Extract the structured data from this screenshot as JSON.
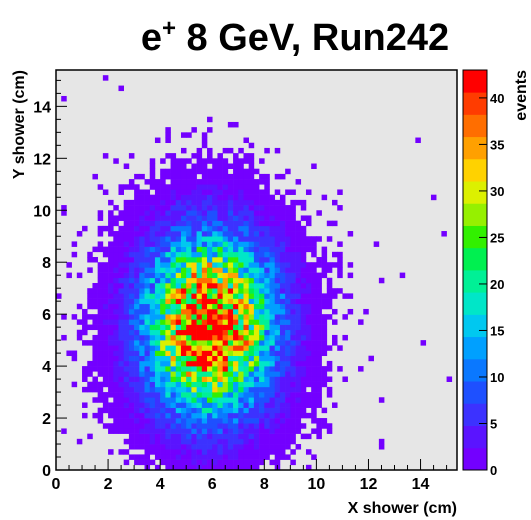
{
  "chart_data": {
    "type": "heatmap",
    "title": {
      "particle": "e",
      "superscript": "+",
      "rest": " 8 GeV, Run242"
    },
    "xlabel": "X shower (cm)",
    "ylabel": "Y shower (cm)",
    "zlabel": "events",
    "xlim": [
      0,
      15.4
    ],
    "ylim": [
      0,
      15.4
    ],
    "zlim": [
      0,
      43
    ],
    "x_ticks": [
      "0",
      "2",
      "4",
      "6",
      "8",
      "10",
      "12",
      "14"
    ],
    "y_ticks": [
      "0",
      "2",
      "4",
      "6",
      "8",
      "10",
      "12",
      "14"
    ],
    "z_ticks": [
      "0",
      "5",
      "10",
      "15",
      "20",
      "25",
      "30",
      "35",
      "40"
    ],
    "bins": {
      "nx": 77,
      "ny": 77,
      "bin_width_cm": 0.2
    },
    "distribution": {
      "shape": "2D gaussian",
      "center_x_cm": 5.9,
      "center_y_cm": 5.6,
      "sigma_x_cm": 1.6,
      "sigma_y_cm": 2.2,
      "peak_events": 43
    },
    "frame_color": "#e6e6e6",
    "palette": [
      "#7300ff",
      "#5a14ff",
      "#3c32ff",
      "#1e50ff",
      "#0a78ff",
      "#00a0ff",
      "#00c8f0",
      "#00e6c8",
      "#00f096",
      "#00f050",
      "#32f000",
      "#96f000",
      "#dcf000",
      "#ffd200",
      "#ffa000",
      "#ff6e00",
      "#ff3c00",
      "#ff0000"
    ],
    "grid": false,
    "legend": "color scale at right"
  }
}
